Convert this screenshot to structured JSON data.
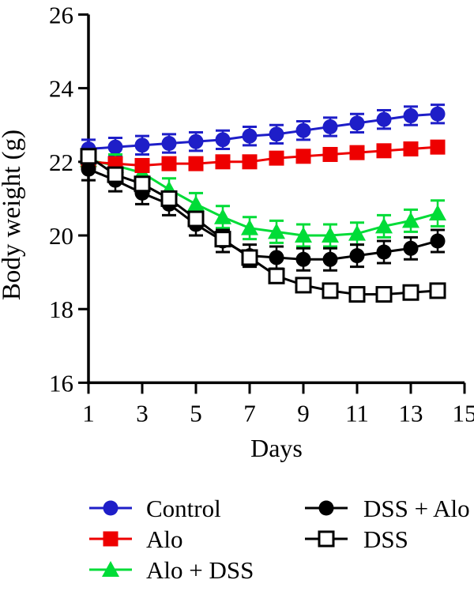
{
  "chart_data": {
    "type": "line",
    "title": "",
    "xlabel": "Days",
    "ylabel": "Body weight (g)",
    "xlim": [
      1,
      15
    ],
    "ylim": [
      16,
      26
    ],
    "x_ticks": [
      1,
      3,
      5,
      7,
      9,
      11,
      13,
      15
    ],
    "y_ticks": [
      16,
      18,
      20,
      22,
      24,
      26
    ],
    "grid": false,
    "x": [
      1,
      2,
      3,
      4,
      5,
      6,
      7,
      8,
      9,
      10,
      11,
      12,
      13,
      14
    ],
    "series": [
      {
        "name": "Control",
        "marker": "circle-filled",
        "color": "#1E1EC8",
        "values": [
          22.35,
          22.4,
          22.45,
          22.5,
          22.55,
          22.6,
          22.7,
          22.75,
          22.85,
          22.95,
          23.05,
          23.15,
          23.25,
          23.3
        ],
        "errors": [
          0.25,
          0.25,
          0.25,
          0.25,
          0.25,
          0.25,
          0.25,
          0.25,
          0.25,
          0.25,
          0.25,
          0.25,
          0.25,
          0.25
        ]
      },
      {
        "name": "Alo",
        "marker": "square-filled",
        "color": "#EE0000",
        "values": [
          22.0,
          21.95,
          21.9,
          21.95,
          21.95,
          22.0,
          22.0,
          22.1,
          22.15,
          22.2,
          22.25,
          22.3,
          22.35,
          22.4
        ],
        "errors": [
          0.12,
          0.12,
          0.12,
          0.12,
          0.12,
          0.12,
          0.12,
          0.12,
          0.12,
          0.12,
          0.12,
          0.12,
          0.12,
          0.12
        ]
      },
      {
        "name": "Alo + DSS",
        "marker": "triangle-filled",
        "color": "#00DC37",
        "values": [
          22.05,
          21.9,
          21.7,
          21.25,
          20.85,
          20.5,
          20.2,
          20.1,
          20.0,
          20.0,
          20.05,
          20.25,
          20.4,
          20.6
        ],
        "errors": [
          0.25,
          0.3,
          0.3,
          0.3,
          0.3,
          0.3,
          0.3,
          0.3,
          0.3,
          0.3,
          0.3,
          0.3,
          0.3,
          0.35
        ]
      },
      {
        "name": "DSS + Alo",
        "marker": "circle-filled",
        "color": "#000000",
        "values": [
          21.8,
          21.5,
          21.15,
          20.85,
          20.3,
          19.85,
          19.45,
          19.4,
          19.35,
          19.35,
          19.45,
          19.55,
          19.65,
          19.85
        ],
        "errors": [
          0.3,
          0.3,
          0.3,
          0.3,
          0.3,
          0.3,
          0.3,
          0.3,
          0.3,
          0.3,
          0.3,
          0.3,
          0.3,
          0.3
        ]
      },
      {
        "name": "DSS",
        "marker": "square-open",
        "color": "#000000",
        "values": [
          22.15,
          21.65,
          21.4,
          21.0,
          20.45,
          19.9,
          19.4,
          18.9,
          18.65,
          18.5,
          18.4,
          18.4,
          18.45,
          18.5
        ],
        "errors": [
          0.15,
          0.15,
          0.15,
          0.15,
          0.15,
          0.15,
          0.15,
          0.15,
          0.15,
          0.15,
          0.15,
          0.15,
          0.15,
          0.15
        ]
      }
    ],
    "draw_order": [
      0,
      2,
      1,
      3,
      4
    ],
    "legend": {
      "position": "bottom",
      "columns": [
        [
          "Control",
          "Alo",
          "Alo + DSS"
        ],
        [
          "DSS + Alo",
          "DSS"
        ]
      ]
    }
  }
}
